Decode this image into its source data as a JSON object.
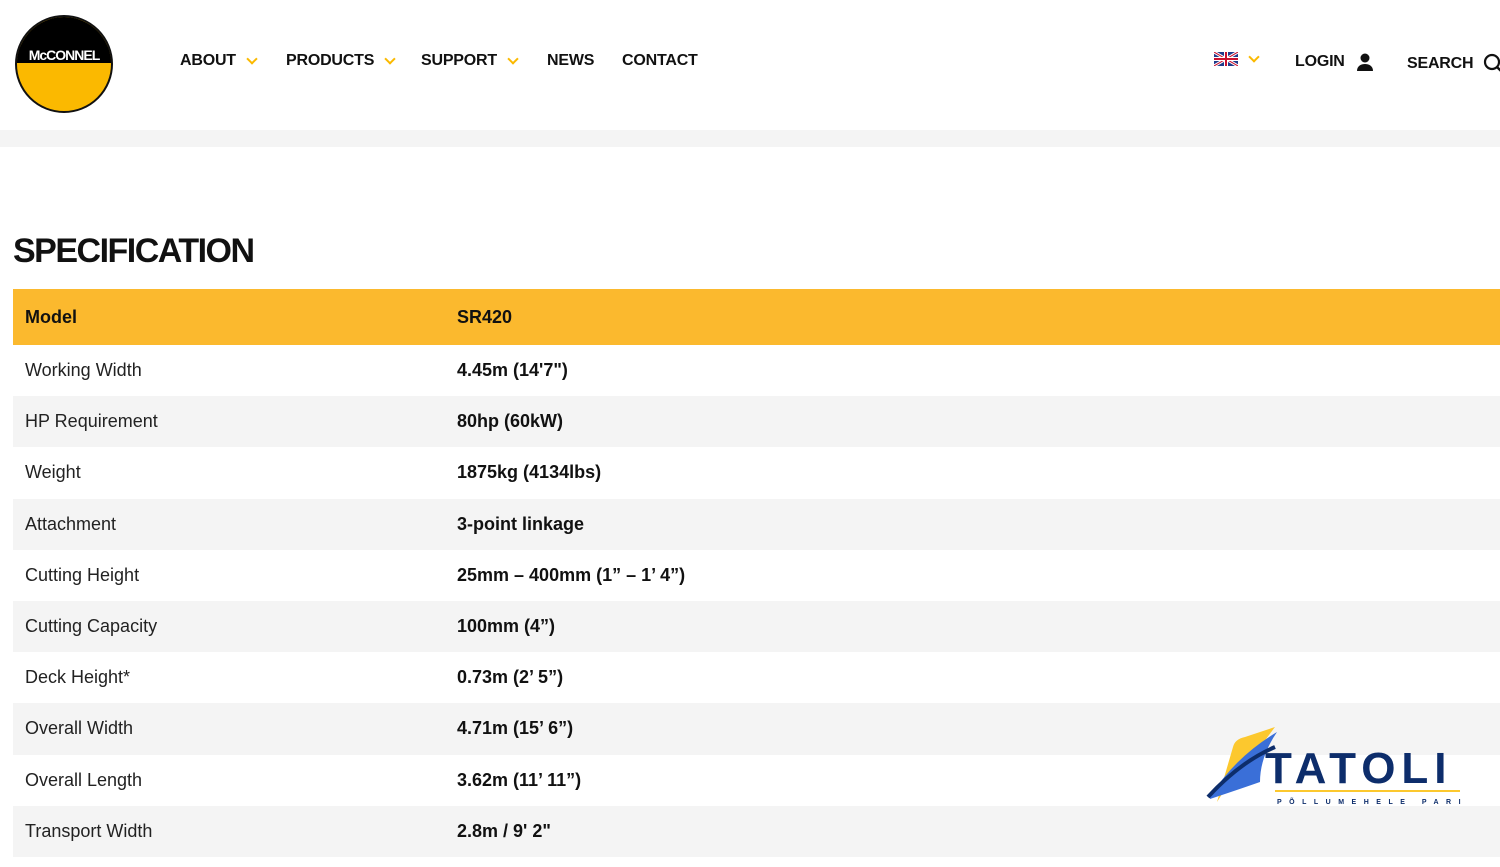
{
  "brand": {
    "logo_text": "McCONNEL"
  },
  "nav": {
    "items": [
      {
        "label": "ABOUT",
        "dropdown": true
      },
      {
        "label": "PRODUCTS",
        "dropdown": true
      },
      {
        "label": "SUPPORT",
        "dropdown": true
      },
      {
        "label": "NEWS"
      },
      {
        "label": "CONTACT"
      }
    ],
    "language": "uk-flag-icon",
    "login": "LOGIN",
    "search": "SEARCH"
  },
  "page": {
    "title": "SPECIFICATION"
  },
  "spec": {
    "header": [
      "Model",
      "SR420"
    ],
    "rows": [
      [
        "Working Width",
        "4.45m (14'7\")"
      ],
      [
        "HP Requirement",
        "80hp (60kW)"
      ],
      [
        "Weight",
        "1875kg (4134lbs)"
      ],
      [
        "Attachment",
        "3-point linkage"
      ],
      [
        "Cutting Height",
        "25mm – 400mm (1” – 1’ 4”)"
      ],
      [
        "Cutting Capacity",
        "100mm (4”)"
      ],
      [
        "Deck Height*",
        "0.73m (2’ 5”)"
      ],
      [
        "Overall Width",
        "4.71m (15’ 6”)"
      ],
      [
        "Overall Length",
        "3.62m (11’ 11”)"
      ],
      [
        "Transport Width",
        "2.8m / 9' 2\""
      ]
    ]
  },
  "watermark": {
    "name": "TATOLI",
    "tagline": "PÕLLUMEHELE PARIM"
  },
  "colors": {
    "accent": "#fbb92e",
    "stripe": "#f4f4f4",
    "tatoli_blue": "#0d2d6b"
  }
}
